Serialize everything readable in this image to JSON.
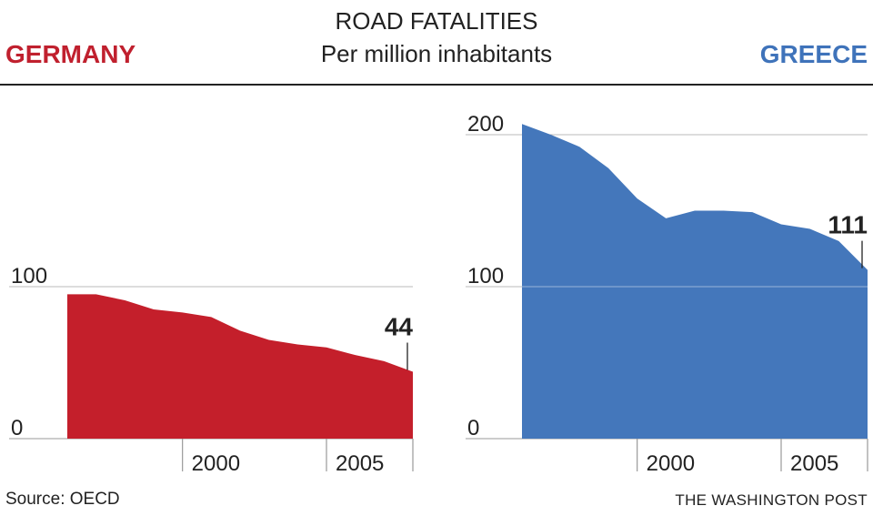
{
  "header": {
    "title": "ROAD FATALITIES",
    "subtitle": "Per million inhabitants",
    "left_country": "GERMANY",
    "right_country": "GREECE"
  },
  "footer": {
    "source": "Source: OECD",
    "credit": "THE WASHINGTON POST"
  },
  "colors": {
    "germany": "#c41f2b",
    "greece": "#4477bb",
    "grid": "#bbbbbb",
    "text": "#222222"
  },
  "chart_data": [
    {
      "type": "area",
      "name": "GERMANY",
      "x": [
        1996,
        1997,
        1998,
        1999,
        2000,
        2001,
        2002,
        2003,
        2004,
        2005,
        2006,
        2007,
        2008
      ],
      "y": [
        95,
        95,
        91,
        85,
        83,
        80,
        71,
        65,
        62,
        60,
        55,
        51,
        44
      ],
      "xlim": [
        1996,
        2008
      ],
      "ylim": [
        0,
        100
      ],
      "yticks": [
        0,
        100
      ],
      "xticks": [
        2000,
        2005
      ],
      "end_label": "44"
    },
    {
      "type": "area",
      "name": "GREECE",
      "x": [
        1996,
        1997,
        1998,
        1999,
        2000,
        2001,
        2002,
        2003,
        2004,
        2005,
        2006,
        2007,
        2008
      ],
      "y": [
        207,
        200,
        192,
        178,
        158,
        145,
        150,
        150,
        149,
        141,
        138,
        130,
        111
      ],
      "xlim": [
        1996,
        2008
      ],
      "ylim": [
        0,
        200
      ],
      "yticks": [
        0,
        100,
        200
      ],
      "xticks": [
        2000,
        2005
      ],
      "end_label": "111"
    }
  ]
}
